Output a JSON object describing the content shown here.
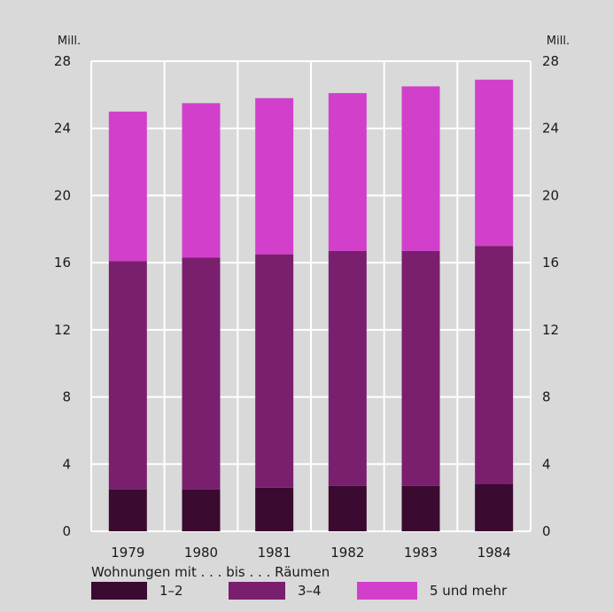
{
  "chart_data": {
    "type": "bar",
    "stacked": true,
    "categories": [
      "1979",
      "1980",
      "1981",
      "1982",
      "1983",
      "1984"
    ],
    "series": [
      {
        "name": "1–2",
        "color": "#3a0a30",
        "values": [
          2.5,
          2.5,
          2.6,
          2.7,
          2.7,
          2.8
        ]
      },
      {
        "name": "3–4",
        "color": "#7a1e6e",
        "values": [
          13.6,
          13.8,
          13.9,
          14.0,
          14.0,
          14.2
        ]
      },
      {
        "name": "5 und mehr",
        "color": "#d23fcb",
        "values": [
          8.9,
          9.2,
          9.3,
          9.4,
          9.8,
          9.9
        ]
      }
    ],
    "ylim": [
      0,
      28
    ],
    "yticks": [
      0,
      4,
      8,
      12,
      16,
      20,
      24,
      28
    ],
    "yunit_left": "Mill.",
    "yunit_right": "Mill.",
    "grid": true,
    "legend_title": "Wohnungen mit . . . bis . . . Räumen",
    "legend_position": "bottom"
  }
}
